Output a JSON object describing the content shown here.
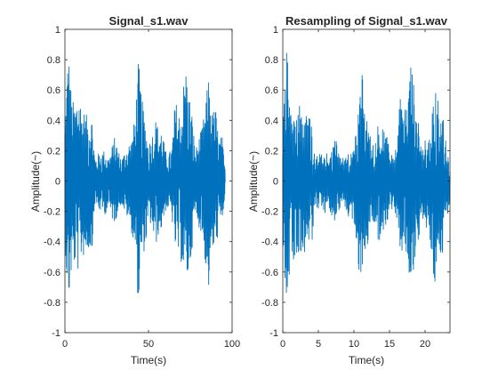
{
  "chart_data": [
    {
      "type": "line",
      "title": "Signal_s1.wav",
      "xlabel": "Time(s)",
      "ylabel": "Amplitude(~)",
      "xlim": [
        0,
        100
      ],
      "ylim": [
        -1,
        1
      ],
      "xticks": [
        0,
        50,
        100
      ],
      "xtick_labels": [
        "0",
        "50",
        "100"
      ],
      "yticks": [
        -1,
        -0.8,
        -0.6,
        -0.4,
        -0.2,
        0,
        0.2,
        0.4,
        0.6,
        0.8,
        1
      ],
      "ytick_labels": [
        "-1",
        "-0.8",
        "-0.6",
        "-0.4",
        "-0.2",
        "0",
        "0.2",
        "0.4",
        "0.6",
        "0.8",
        "1"
      ],
      "grid": false,
      "line_color": "#0072bd",
      "series": [
        {
          "x": [
            0,
            2,
            4,
            6,
            8,
            10,
            12,
            14,
            16,
            18,
            20,
            22,
            24,
            26,
            28,
            30,
            32,
            34,
            36,
            38,
            40,
            42,
            44,
            46,
            48,
            50,
            52,
            54,
            56,
            58,
            60,
            62,
            64,
            66,
            68,
            70,
            72,
            74,
            76,
            78,
            80,
            82,
            84,
            86,
            88,
            90,
            92,
            94,
            96
          ],
          "envelope_max": [
            0.4,
            0.9,
            0.55,
            0.5,
            0.62,
            0.5,
            0.45,
            0.42,
            0.45,
            0.15,
            0.18,
            0.2,
            0.2,
            0.15,
            0.22,
            0.3,
            0.2,
            0.15,
            0.2,
            0.25,
            0.28,
            0.45,
            0.8,
            0.55,
            0.4,
            0.25,
            0.3,
            0.42,
            0.35,
            0.35,
            0.2,
            0.18,
            0.22,
            0.55,
            0.45,
            0.5,
            0.8,
            0.6,
            0.45,
            0.2,
            0.28,
            0.35,
            0.5,
            0.7,
            0.45,
            0.5,
            0.28,
            0.3,
            0.05
          ],
          "envelope_min": [
            -0.4,
            -0.85,
            -0.6,
            -0.55,
            -0.6,
            -0.5,
            -0.5,
            -0.45,
            -0.48,
            -0.15,
            -0.2,
            -0.2,
            -0.22,
            -0.18,
            -0.25,
            -0.28,
            -0.18,
            -0.15,
            -0.22,
            -0.25,
            -0.35,
            -0.45,
            -0.85,
            -0.5,
            -0.45,
            -0.28,
            -0.3,
            -0.45,
            -0.35,
            -0.32,
            -0.2,
            -0.18,
            -0.25,
            -0.45,
            -0.5,
            -0.55,
            -0.65,
            -0.65,
            -0.45,
            -0.22,
            -0.3,
            -0.35,
            -0.55,
            -0.72,
            -0.45,
            -0.5,
            -0.3,
            -0.3,
            -0.05
          ]
        }
      ]
    },
    {
      "type": "line",
      "title": "Resampling of Signal_s1.wav",
      "xlabel": "Time(s)",
      "ylabel": "Amplitude(~)",
      "xlim": [
        0,
        23.5
      ],
      "ylim": [
        -1,
        1
      ],
      "xticks": [
        0,
        5,
        10,
        15,
        20
      ],
      "xtick_labels": [
        "0",
        "5",
        "10",
        "15",
        "20"
      ],
      "yticks": [
        -1,
        -0.8,
        -0.6,
        -0.4,
        -0.2,
        0,
        0.2,
        0.4,
        0.6,
        0.8,
        1
      ],
      "ytick_labels": [
        "-1",
        "-0.8",
        "-0.6",
        "-0.4",
        "-0.2",
        "0",
        "0.2",
        "0.4",
        "0.6",
        "0.8",
        "1"
      ],
      "grid": false,
      "line_color": "#0072bd",
      "series": [
        {
          "x": [
            0,
            0.5,
            1,
            1.5,
            2,
            2.5,
            3,
            3.5,
            4,
            4.5,
            5,
            5.5,
            6,
            6.5,
            7,
            7.5,
            8,
            8.5,
            9,
            9.5,
            10,
            10.5,
            11,
            11.5,
            12,
            12.5,
            13,
            13.5,
            14,
            14.5,
            15,
            15.5,
            16,
            16.5,
            17,
            17.5,
            18,
            18.5,
            19,
            19.5,
            20,
            20.5,
            21,
            21.5,
            22,
            22.5,
            23,
            23.5
          ],
          "envelope_max": [
            0.4,
            0.9,
            0.55,
            0.5,
            0.62,
            0.5,
            0.45,
            0.42,
            0.45,
            0.15,
            0.18,
            0.2,
            0.2,
            0.15,
            0.22,
            0.3,
            0.2,
            0.15,
            0.2,
            0.25,
            0.28,
            0.45,
            0.8,
            0.55,
            0.4,
            0.25,
            0.3,
            0.42,
            0.35,
            0.35,
            0.2,
            0.18,
            0.22,
            0.55,
            0.45,
            0.5,
            0.8,
            0.6,
            0.45,
            0.2,
            0.28,
            0.35,
            0.5,
            0.7,
            0.45,
            0.5,
            0.28,
            0.15
          ],
          "envelope_min": [
            -0.4,
            -0.85,
            -0.6,
            -0.55,
            -0.6,
            -0.5,
            -0.5,
            -0.45,
            -0.48,
            -0.15,
            -0.2,
            -0.2,
            -0.22,
            -0.18,
            -0.25,
            -0.28,
            -0.18,
            -0.15,
            -0.22,
            -0.25,
            -0.35,
            -0.45,
            -0.85,
            -0.5,
            -0.45,
            -0.28,
            -0.3,
            -0.45,
            -0.35,
            -0.32,
            -0.2,
            -0.18,
            -0.25,
            -0.45,
            -0.5,
            -0.55,
            -0.65,
            -0.65,
            -0.45,
            -0.22,
            -0.3,
            -0.35,
            -0.55,
            -0.72,
            -0.45,
            -0.5,
            -0.3,
            -0.15
          ]
        }
      ]
    }
  ]
}
